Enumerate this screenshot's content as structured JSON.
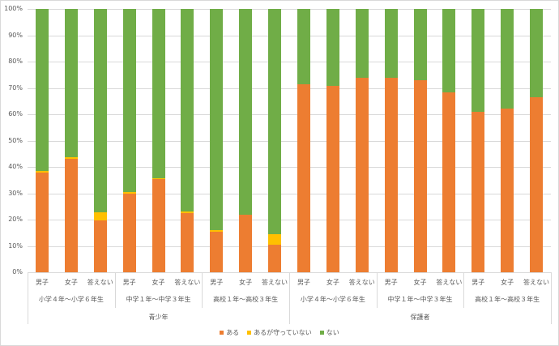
{
  "chart_data": {
    "type": "bar",
    "stacked": true,
    "title": "",
    "xlabel": "",
    "ylabel": "",
    "ylim": [
      0,
      100
    ],
    "y_ticks": [
      "0%",
      "10%",
      "20%",
      "30%",
      "40%",
      "50%",
      "60%",
      "70%",
      "80%",
      "90%",
      "100%"
    ],
    "grid": true,
    "legend_position": "bottom",
    "categories": [
      "青少年 / 小学４年～小学６年生 / 男子",
      "青少年 / 小学４年～小学６年生 / 女子",
      "青少年 / 小学４年～小学６年生 / 答えない",
      "青少年 / 中学１年～中学３年生 / 男子",
      "青少年 / 中学１年～中学３年生 / 女子",
      "青少年 / 中学１年～中学３年生 / 答えない",
      "青少年 / 高校１年～高校３年生 / 男子",
      "青少年 / 高校１年～高校３年生 / 女子",
      "青少年 / 高校１年～高校３年生 / 答えない",
      "保護者 / 小学４年～小学６年生 / 男子",
      "保護者 / 小学４年～小学６年生 / 女子",
      "保護者 / 小学４年～小学６年生 / 答えない",
      "保護者 / 中学１年～中学３年生 / 男子",
      "保護者 / 中学１年～中学３年生 / 女子",
      "保護者 / 中学１年～中学３年生 / 答えない",
      "保護者 / 高校１年～高校３年生 / 男子",
      "保護者 / 高校１年～高校３年生 / 女子",
      "保護者 / 高校１年～高校３年生 / 答えない"
    ],
    "series": [
      {
        "name": "ある",
        "color": "#ED7D31",
        "values": [
          37.8,
          43.1,
          19.7,
          29.8,
          35.4,
          22.5,
          15.4,
          21.8,
          10.5,
          71.4,
          70.9,
          74.0,
          74.0,
          72.9,
          68.3,
          60.8,
          62.3,
          66.5
        ]
      },
      {
        "name": "あるが守っていない",
        "color": "#FFC000",
        "values": [
          0.6,
          0.6,
          3.1,
          0.7,
          0.3,
          0.6,
          0.6,
          0.1,
          4.0,
          0,
          0,
          0,
          0,
          0,
          0,
          0,
          0,
          0
        ]
      },
      {
        "name": "ない",
        "color": "#70AD47",
        "values": [
          61.6,
          56.3,
          77.2,
          69.5,
          64.3,
          76.9,
          84.0,
          78.1,
          85.5,
          28.6,
          29.1,
          26.0,
          26.0,
          27.1,
          31.7,
          39.2,
          37.7,
          33.5
        ]
      }
    ],
    "axis_levels": {
      "level1": [
        "男子",
        "女子",
        "答えない",
        "男子",
        "女子",
        "答えない",
        "男子",
        "女子",
        "答えない",
        "男子",
        "女子",
        "答えない",
        "男子",
        "女子",
        "答えない",
        "男子",
        "女子",
        "答えない"
      ],
      "level2": [
        "小学４年～小学６年生",
        "中学１年～中学３年生",
        "高校１年～高校３年生",
        "小学４年～小学６年生",
        "中学１年～中学３年生",
        "高校１年～高校３年生"
      ],
      "level3": [
        "青少年",
        "保護者"
      ]
    }
  }
}
